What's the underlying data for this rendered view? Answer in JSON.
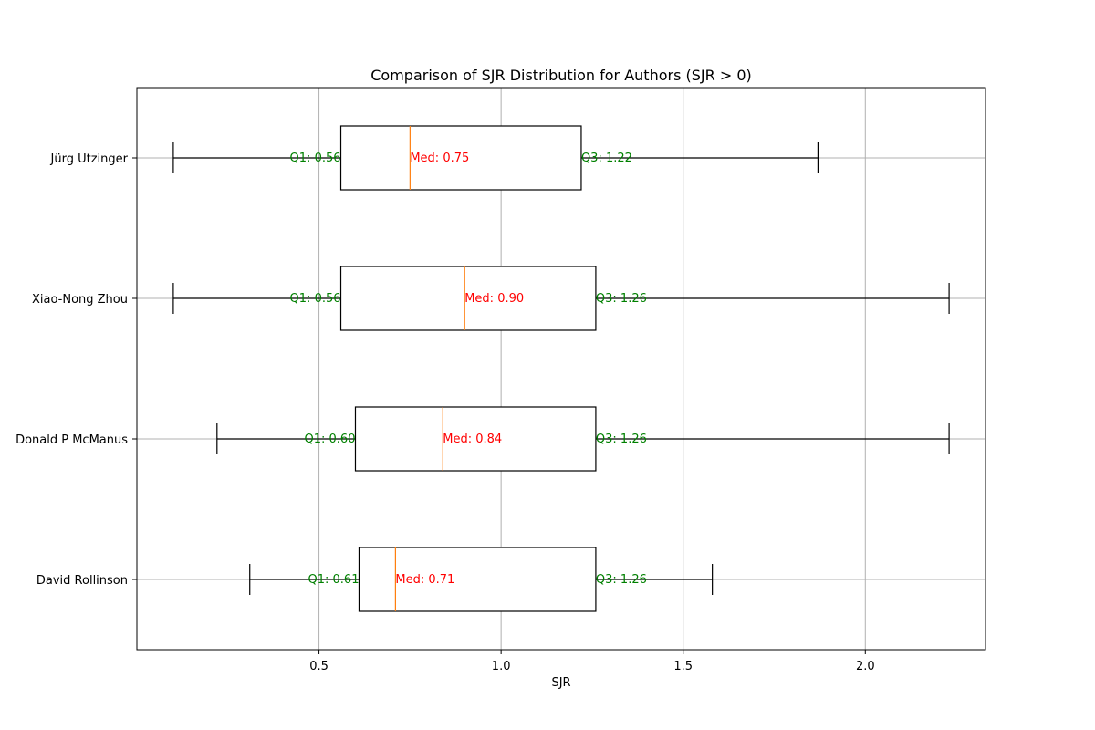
{
  "chart_data": {
    "type": "boxplot",
    "title": "Comparison of SJR Distribution for Authors (SJR > 0)",
    "xlabel": "SJR",
    "ylabel": "",
    "xlim": [
      0.0,
      2.33
    ],
    "x_ticks": [
      0.5,
      1.0,
      1.5,
      2.0
    ],
    "x_tick_labels": [
      "0.5",
      "1.0",
      "1.5",
      "2.0"
    ],
    "grid": true,
    "orientation": "horizontal",
    "colors": {
      "box": "#000000",
      "median": "#ff7f0e",
      "q_label": "#008000",
      "med_label": "#ff0000",
      "grid": "#b0b0b0"
    },
    "series": [
      {
        "name": "David Rollinson",
        "whisker_low": 0.31,
        "q1": 0.61,
        "median": 0.71,
        "q3": 1.26,
        "whisker_high": 1.58,
        "q1_label": "Q1: 0.61",
        "median_label": "Med: 0.71",
        "q3_label": "Q3: 1.26"
      },
      {
        "name": "Donald P McManus",
        "whisker_low": 0.22,
        "q1": 0.6,
        "median": 0.84,
        "q3": 1.26,
        "whisker_high": 2.23,
        "q1_label": "Q1: 0.60",
        "median_label": "Med: 0.84",
        "q3_label": "Q3: 1.26"
      },
      {
        "name": "Xiao-Nong Zhou",
        "whisker_low": 0.1,
        "q1": 0.56,
        "median": 0.9,
        "q3": 1.26,
        "whisker_high": 2.23,
        "q1_label": "Q1: 0.56",
        "median_label": "Med: 0.90",
        "q3_label": "Q3: 1.26"
      },
      {
        "name": "Jürg Utzinger",
        "whisker_low": 0.1,
        "q1": 0.56,
        "median": 0.75,
        "q3": 1.22,
        "whisker_high": 1.87,
        "q1_label": "Q1: 0.56",
        "median_label": "Med: 0.75",
        "q3_label": "Q3: 1.22"
      }
    ]
  }
}
